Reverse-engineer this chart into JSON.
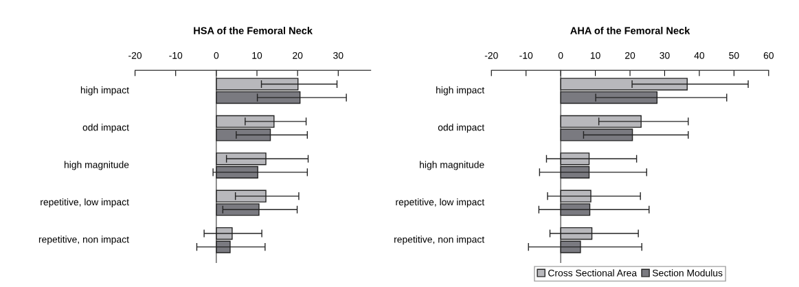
{
  "chart_data": [
    {
      "type": "bar",
      "orientation": "horizontal",
      "title": "HSA of the Femoral Neck",
      "categories": [
        "high impact",
        "odd impact",
        "high magnitude",
        "repetitive, low impact",
        "repetitive, non impact"
      ],
      "series": [
        {
          "color": "#b8b8bc",
          "values": [
            20.1,
            14.2,
            12.2,
            12.2,
            3.9
          ],
          "errors": [
            [
              11.1,
              29.7
            ],
            [
              7.1,
              22.1
            ],
            [
              2.5,
              22.6
            ],
            [
              4.7,
              20.3
            ],
            [
              -3.0,
              11.2
            ]
          ]
        },
        {
          "color": "#7a7a80",
          "values": [
            20.6,
            13.3,
            10.2,
            10.5,
            3.4
          ],
          "errors": [
            [
              10.1,
              32.0
            ],
            [
              4.9,
              22.4
            ],
            [
              -0.8,
              22.4
            ],
            [
              1.6,
              19.9
            ],
            [
              -4.8,
              12.0
            ]
          ]
        }
      ],
      "xlim": [
        -20,
        38
      ],
      "xticks": [
        -20,
        -10,
        0,
        10,
        20,
        30
      ]
    },
    {
      "type": "bar",
      "orientation": "horizontal",
      "title": "AHA of the Femoral Neck",
      "categories": [
        "high impact",
        "odd impact",
        "high magnitude",
        "repetitive, low impact",
        "repetitive, non impact"
      ],
      "series": [
        {
          "name": "Cross Sectional Area",
          "color": "#b8b8bc",
          "values": [
            36.5,
            23.2,
            8.2,
            8.7,
            9.0
          ],
          "errors": [
            [
              20.6,
              54.1
            ],
            [
              11.0,
              36.8
            ],
            [
              -4.1,
              21.9
            ],
            [
              -3.8,
              23.0
            ],
            [
              -3.1,
              22.4
            ]
          ]
        },
        {
          "name": "Section Modulus",
          "color": "#7a7a80",
          "values": [
            27.8,
            20.7,
            8.2,
            8.4,
            5.7
          ],
          "errors": [
            [
              10.1,
              47.9
            ],
            [
              6.6,
              36.8
            ],
            [
              -6.1,
              24.8
            ],
            [
              -6.3,
              25.5
            ],
            [
              -9.3,
              23.4
            ]
          ]
        }
      ],
      "xlim": [
        -20,
        60
      ],
      "xticks": [
        -20,
        -10,
        0,
        10,
        20,
        30,
        40,
        50,
        60
      ],
      "legend": "bottom"
    }
  ]
}
